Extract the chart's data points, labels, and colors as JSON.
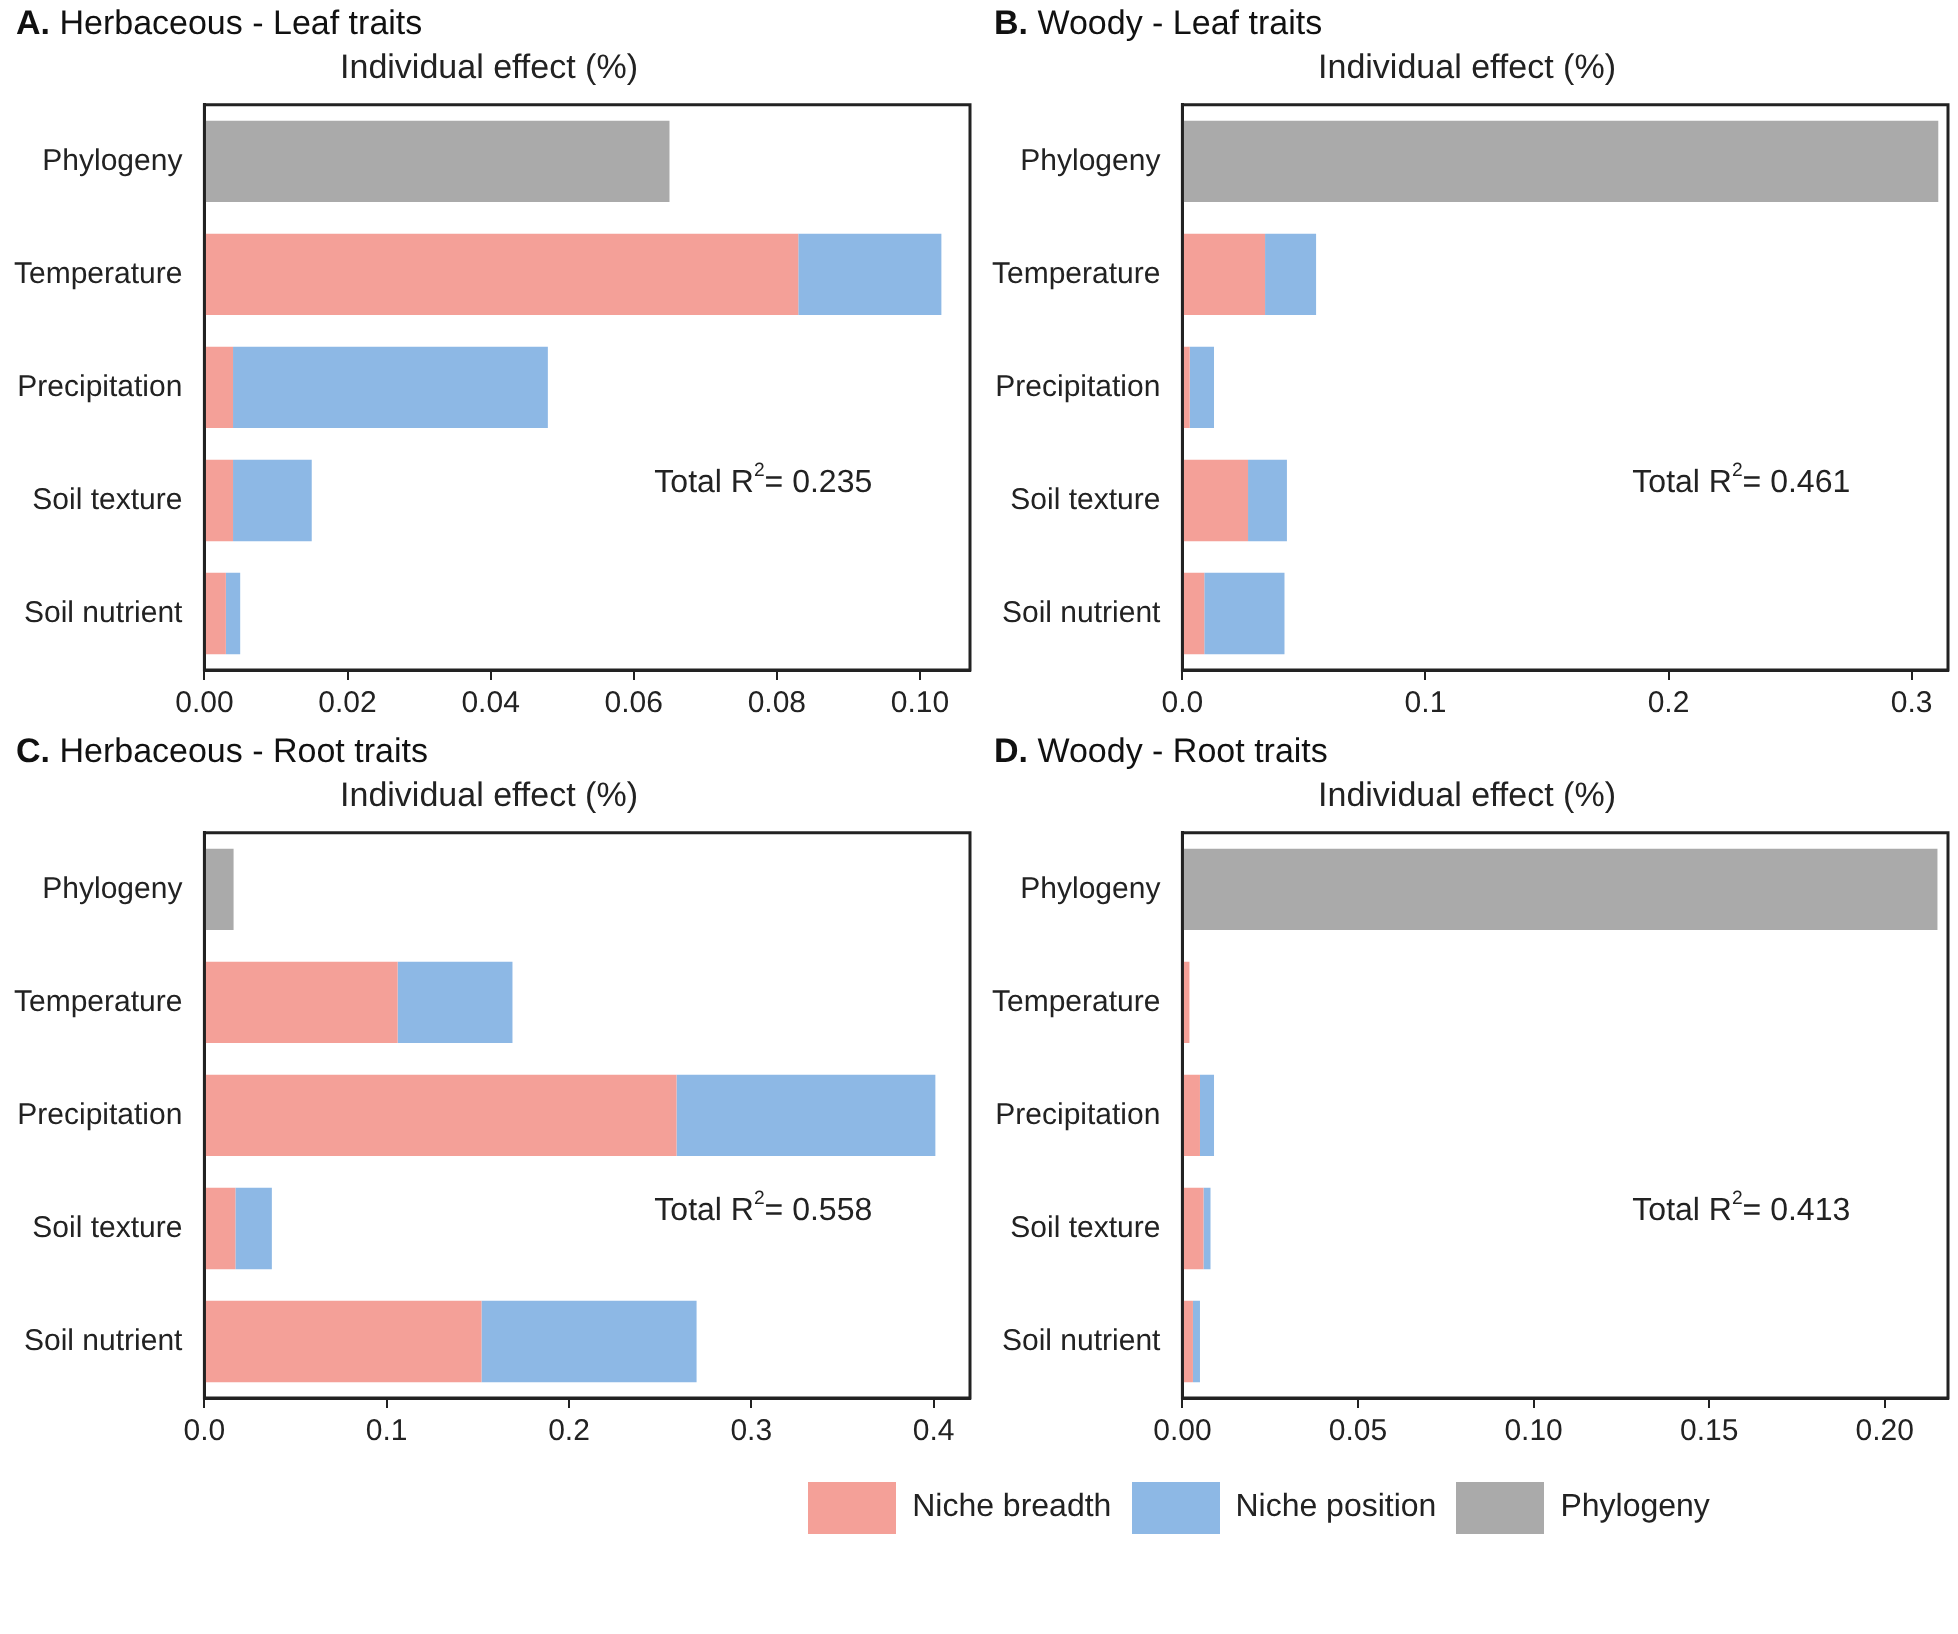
{
  "chart_data": [
    {
      "type": "bar",
      "orientation": "horizontal",
      "stacked": true,
      "title": "A. Herbaceous - Leaf traits",
      "xlabel": "Individual effect (%)",
      "categories": [
        "Phylogeny",
        "Temperature",
        "Precipitation",
        "Soil texture",
        "Soil nutrient"
      ],
      "series": [
        {
          "name": "Niche breadth",
          "color": "#f4a098",
          "values": [
            null,
            0.083,
            0.004,
            0.004,
            0.003
          ]
        },
        {
          "name": "Niche position",
          "color": "#8db8e5",
          "values": [
            null,
            0.02,
            0.044,
            0.011,
            0.002
          ]
        },
        {
          "name": "Phylogeny",
          "color": "#aaaaaa",
          "values": [
            0.065,
            null,
            null,
            null,
            null
          ]
        }
      ],
      "legend": "bottom",
      "xlim": [
        0,
        0.107
      ],
      "xticks": [
        {
          "value": 0,
          "label": "0.00"
        },
        {
          "value": 0.02,
          "label": "0.02"
        },
        {
          "value": 0.04,
          "label": "0.04"
        },
        {
          "value": 0.06,
          "label": "0.06"
        },
        {
          "value": 0.08,
          "label": "0.08"
        },
        {
          "value": 0.1,
          "label": "0.10"
        }
      ],
      "annotations": [
        "Total R$^{2}$= 0.235"
      ]
    },
    {
      "type": "bar",
      "orientation": "horizontal",
      "stacked": true,
      "title": "B. Woody - Leaf traits",
      "xlabel": "Individual effect (%)",
      "categories": [
        "Phylogeny",
        "Temperature",
        "Precipitation",
        "Soil texture",
        "Soil nutrient"
      ],
      "series": [
        {
          "color": "#f4a098",
          "values": [
            null,
            0.034,
            0.003,
            0.027,
            0.009
          ]
        },
        {
          "color": "#8db8e5",
          "values": [
            null,
            0.021,
            0.01,
            0.016,
            0.033
          ]
        },
        {
          "color": "#aaaaaa",
          "values": [
            0.311,
            null,
            null,
            null,
            null
          ]
        }
      ],
      "xlim": [
        0,
        0.315
      ],
      "xticks": [
        {
          "value": 0,
          "label": "0.0"
        },
        0.1,
        0.2,
        0.3
      ],
      "annotations": [
        "Total R$^{2}$= 0.461"
      ]
    },
    {
      "type": "bar",
      "orientation": "horizontal",
      "stacked": true,
      "title": "C. Herbaceous - Root traits",
      "xlabel": "Individual effect (%)",
      "categories": [
        "Phylogeny",
        "Temperature",
        "Precipitation",
        "Soil texture",
        "Soil nutrient"
      ],
      "series": [
        {
          "color": "#f4a098",
          "values": [
            null,
            0.106,
            0.259,
            0.017,
            0.152
          ]
        },
        {
          "color": "#8db8e5",
          "values": [
            null,
            0.063,
            0.142,
            0.02,
            0.118
          ]
        },
        {
          "color": "#aaaaaa",
          "values": [
            0.016,
            null,
            null,
            null,
            null
          ]
        }
      ],
      "xlim": [
        0,
        0.42
      ],
      "xticks": [
        {
          "value": 0,
          "label": "0.0"
        },
        0.1,
        0.2,
        0.3,
        0.4
      ],
      "annotations": [
        "Total R$^{2}$= 0.558"
      ]
    },
    {
      "type": "bar",
      "orientation": "horizontal",
      "stacked": true,
      "title": "D. Woody - Root traits",
      "xlabel": "Individual effect (%)",
      "categories": [
        "Phylogeny",
        "Temperature",
        "Precipitation",
        "Soil texture",
        "Soil nutrient"
      ],
      "series": [
        {
          "color": "#f4a098",
          "values": [
            null,
            0.002,
            0.005,
            0.006,
            0.003
          ]
        },
        {
          "color": "#8db8e5",
          "values": [
            null,
            0,
            0.004,
            0.002,
            0.002
          ]
        },
        {
          "color": "#aaaaaa",
          "values": [
            0.215,
            null,
            null,
            null,
            null
          ]
        }
      ],
      "xlim": [
        0,
        0.218
      ],
      "xticks": [
        {
          "value": 0,
          "label": "0.00"
        },
        {
          "value": 0.05,
          "label": "0.05"
        },
        {
          "value": 0.1,
          "label": "0.10"
        },
        {
          "value": 0.15,
          "label": "0.15"
        },
        {
          "value": 0.2,
          "label": "0.20"
        }
      ],
      "annotations": [
        "Total R$^{2}$= 0.413"
      ]
    }
  ]
}
